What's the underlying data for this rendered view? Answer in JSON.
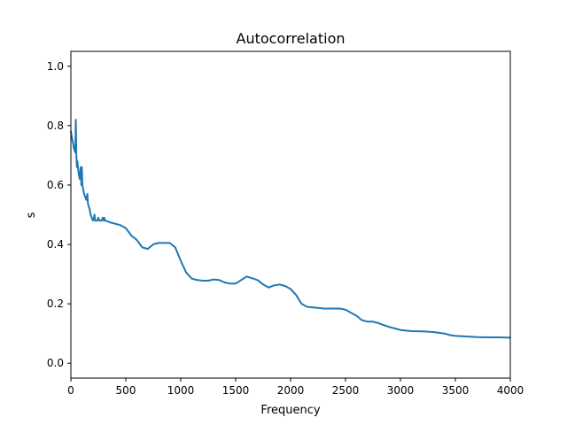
{
  "chart_data": {
    "type": "line",
    "title": "Autocorrelation",
    "xlabel": "Frequency",
    "ylabel": "s",
    "xlim": [
      0,
      4000
    ],
    "ylim": [
      -0.05,
      1.05
    ],
    "xticks": [
      0,
      500,
      1000,
      1500,
      2000,
      2500,
      3000,
      3500,
      4000
    ],
    "yticks": [
      0.0,
      0.2,
      0.4,
      0.6,
      0.8,
      1.0
    ],
    "xtick_labels": [
      "0",
      "500",
      "1000",
      "1500",
      "2000",
      "2500",
      "3000",
      "3500",
      "4000"
    ],
    "ytick_labels": [
      "0.0",
      "0.2",
      "0.4",
      "0.6",
      "0.8",
      "1.0"
    ],
    "grid": false,
    "series": [
      {
        "color": "#1f77b4",
        "x": [
          0,
          10,
          20,
          30,
          40,
          45,
          50,
          55,
          60,
          70,
          80,
          90,
          95,
          100,
          105,
          110,
          120,
          130,
          140,
          150,
          155,
          160,
          170,
          180,
          190,
          200,
          210,
          215,
          220,
          230,
          240,
          250,
          260,
          270,
          280,
          290,
          300,
          305,
          310,
          320,
          350,
          400,
          450,
          500,
          550,
          600,
          650,
          700,
          750,
          800,
          850,
          900,
          950,
          1000,
          1050,
          1100,
          1150,
          1200,
          1250,
          1300,
          1350,
          1400,
          1450,
          1500,
          1550,
          1600,
          1650,
          1700,
          1750,
          1800,
          1850,
          1900,
          1950,
          2000,
          2050,
          2100,
          2150,
          2200,
          2250,
          2300,
          2350,
          2400,
          2450,
          2500,
          2550,
          2600,
          2650,
          2700,
          2750,
          2800,
          2850,
          2900,
          2950,
          3000,
          3100,
          3200,
          3300,
          3400,
          3450,
          3500,
          3600,
          3700,
          3800,
          3900,
          4000
        ],
        "y": [
          0.78,
          0.76,
          0.74,
          0.72,
          0.71,
          0.82,
          0.7,
          0.66,
          0.68,
          0.64,
          0.62,
          0.66,
          0.6,
          0.66,
          0.6,
          0.59,
          0.57,
          0.56,
          0.55,
          0.57,
          0.54,
          0.53,
          0.52,
          0.5,
          0.49,
          0.48,
          0.49,
          0.5,
          0.48,
          0.48,
          0.48,
          0.49,
          0.48,
          0.48,
          0.48,
          0.49,
          0.48,
          0.49,
          0.48,
          0.48,
          0.475,
          0.47,
          0.465,
          0.455,
          0.43,
          0.415,
          0.39,
          0.385,
          0.4,
          0.405,
          0.405,
          0.405,
          0.39,
          0.345,
          0.305,
          0.285,
          0.28,
          0.278,
          0.278,
          0.282,
          0.28,
          0.272,
          0.268,
          0.268,
          0.28,
          0.292,
          0.286,
          0.28,
          0.265,
          0.255,
          0.262,
          0.265,
          0.26,
          0.25,
          0.23,
          0.2,
          0.19,
          0.188,
          0.186,
          0.184,
          0.184,
          0.184,
          0.184,
          0.18,
          0.17,
          0.16,
          0.145,
          0.14,
          0.14,
          0.135,
          0.128,
          0.122,
          0.117,
          0.112,
          0.108,
          0.107,
          0.105,
          0.1,
          0.095,
          0.092,
          0.09,
          0.088,
          0.087,
          0.087,
          0.086
        ]
      }
    ]
  }
}
